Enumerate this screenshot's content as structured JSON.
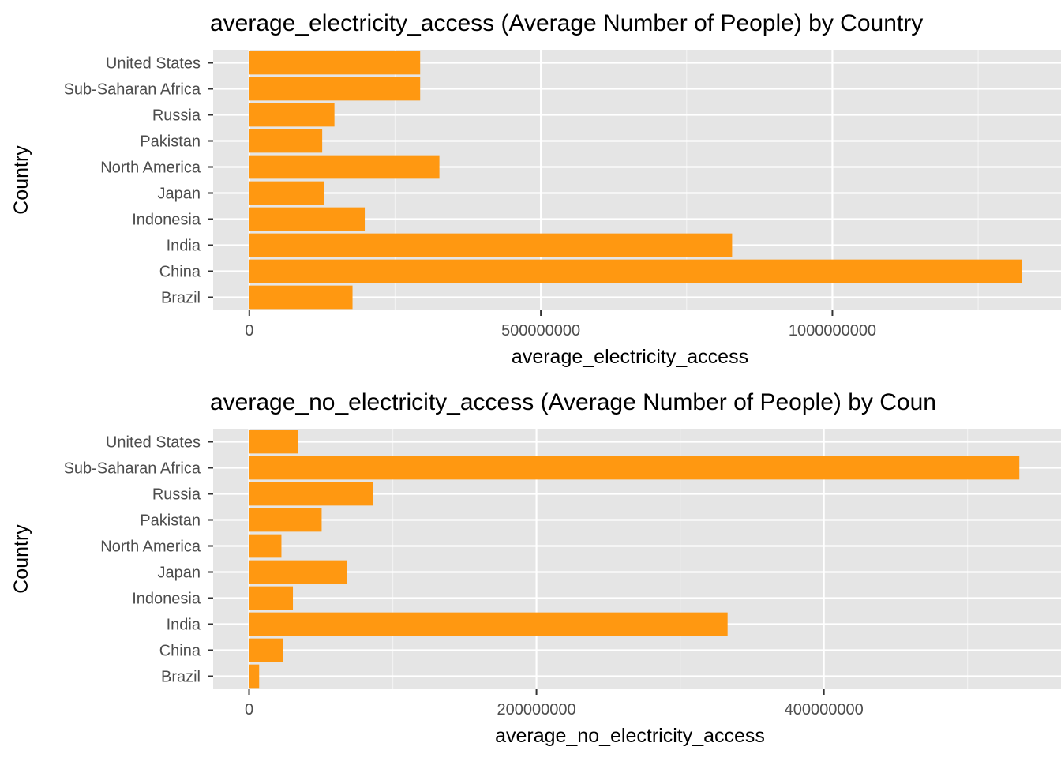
{
  "chart_data": [
    {
      "type": "bar",
      "orientation": "horizontal",
      "title": "average_electricity_access (Average Number of People) by Country",
      "xlabel": "average_electricity_access",
      "ylabel": "Country",
      "categories": [
        "Brazil",
        "China",
        "India",
        "Indonesia",
        "Japan",
        "North America",
        "Pakistan",
        "Russia",
        "Sub-Saharan Africa",
        "United States"
      ],
      "values": [
        177000000,
        1325000000,
        828000000,
        198000000,
        128000000,
        326000000,
        125000000,
        146000000,
        293000000,
        293000000
      ],
      "xlim": [
        -62000000,
        1392000000
      ],
      "x_ticks": [
        0,
        500000000,
        1000000000
      ],
      "x_tick_labels": [
        "0",
        "500000000",
        "1000000000"
      ],
      "bar_color": "#FF9811",
      "panel_color": "#E5E5E5",
      "grid": true,
      "legend": "none"
    },
    {
      "type": "bar",
      "orientation": "horizontal",
      "title": "average_no_electricity_access (Average Number of People) by Coun",
      "xlabel": "average_no_electricity_access",
      "ylabel": "Country",
      "categories": [
        "Brazil",
        "China",
        "India",
        "Indonesia",
        "Japan",
        "North America",
        "Pakistan",
        "Russia",
        "Sub-Saharan Africa",
        "United States"
      ],
      "values": [
        7000000,
        23500000,
        333000000,
        30500000,
        68000000,
        22500000,
        50500000,
        86500000,
        536000000,
        34000000
      ],
      "xlim": [
        -25000000,
        565000000
      ],
      "x_ticks": [
        0,
        200000000,
        400000000
      ],
      "x_tick_labels": [
        "0",
        "200000000",
        "400000000"
      ],
      "bar_color": "#FF9811",
      "panel_color": "#E5E5E5",
      "grid": true,
      "legend": "none"
    }
  ]
}
